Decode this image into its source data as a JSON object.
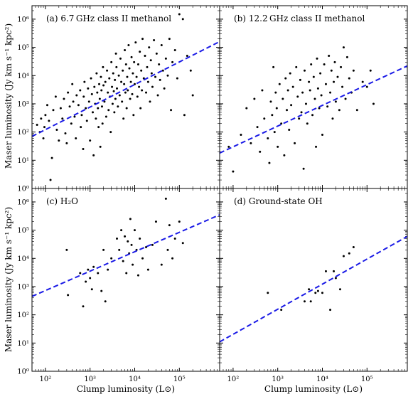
{
  "figure": {
    "ylabel": "Maser luminosity (Jy km s⁻¹ kpc²)",
    "xlabel": "Clump luminosity (L⊙)",
    "xtick_labels": [
      "10²",
      "10³",
      "10⁴",
      "10⁵"
    ],
    "ytick_labels": [
      "10⁰",
      "10¹",
      "10²",
      "10³",
      "10⁴",
      "10⁵",
      "10⁶"
    ],
    "marker_color": "#000000",
    "fit_color": "#1a1ae6"
  },
  "chart_data": [
    {
      "type": "scatter",
      "panel_label": "(a) 6.7 GHz class II methanol",
      "xscale": "log",
      "yscale": "log",
      "xlim": [
        50,
        800000
      ],
      "ylim": [
        1,
        3000000
      ],
      "fit_line": {
        "x": [
          50,
          800000
        ],
        "y": [
          70,
          160000
        ]
      },
      "points": [
        [
          65,
          180
        ],
        [
          75,
          100
        ],
        [
          80,
          300
        ],
        [
          90,
          60
        ],
        [
          95,
          150
        ],
        [
          100,
          400
        ],
        [
          110,
          900
        ],
        [
          120,
          250
        ],
        [
          130,
          2
        ],
        [
          140,
          12
        ],
        [
          150,
          600
        ],
        [
          170,
          1800
        ],
        [
          180,
          120
        ],
        [
          200,
          50
        ],
        [
          220,
          700
        ],
        [
          240,
          300
        ],
        [
          260,
          1500
        ],
        [
          280,
          90
        ],
        [
          300,
          40
        ],
        [
          320,
          2500
        ],
        [
          350,
          800
        ],
        [
          380,
          200
        ],
        [
          400,
          5000
        ],
        [
          420,
          1200
        ],
        [
          450,
          350
        ],
        [
          480,
          60
        ],
        [
          500,
          2000
        ],
        [
          550,
          900
        ],
        [
          600,
          3000
        ],
        [
          620,
          150
        ],
        [
          650,
          400
        ],
        [
          700,
          25
        ],
        [
          720,
          1800
        ],
        [
          750,
          6000
        ],
        [
          800,
          700
        ],
        [
          850,
          250
        ],
        [
          900,
          3500
        ],
        [
          950,
          1200
        ],
        [
          1000,
          50
        ],
        [
          1050,
          8000
        ],
        [
          1100,
          2200
        ],
        [
          1150,
          500
        ],
        [
          1200,
          15
        ],
        [
          1250,
          4000
        ],
        [
          1300,
          1000
        ],
        [
          1350,
          300
        ],
        [
          1400,
          12000
        ],
        [
          1450,
          2500
        ],
        [
          1500,
          700
        ],
        [
          1550,
          150
        ],
        [
          1600,
          5000
        ],
        [
          1650,
          1500
        ],
        [
          1700,
          30
        ],
        [
          1750,
          9000
        ],
        [
          1800,
          3000
        ],
        [
          1850,
          800
        ],
        [
          1900,
          200
        ],
        [
          1950,
          20000
        ],
        [
          2000,
          4500
        ],
        [
          2100,
          1200
        ],
        [
          2200,
          6000
        ],
        [
          2300,
          350
        ],
        [
          2400,
          15000
        ],
        [
          2500,
          2500
        ],
        [
          2600,
          600
        ],
        [
          2700,
          8000
        ],
        [
          2800,
          1800
        ],
        [
          2900,
          100
        ],
        [
          3000,
          30000
        ],
        [
          3100,
          4000
        ],
        [
          3200,
          1000
        ],
        [
          3300,
          12000
        ],
        [
          3400,
          2800
        ],
        [
          3500,
          500
        ],
        [
          3600,
          7000
        ],
        [
          3700,
          1500
        ],
        [
          3800,
          60000
        ],
        [
          3900,
          20000
        ],
        [
          4000,
          3500
        ],
        [
          4200,
          800
        ],
        [
          4400,
          10000
        ],
        [
          4600,
          2000
        ],
        [
          4800,
          40000
        ],
        [
          5000,
          6000
        ],
        [
          5200,
          1200
        ],
        [
          5400,
          15000
        ],
        [
          5600,
          300
        ],
        [
          5800,
          5000
        ],
        [
          6000,
          80000
        ],
        [
          6200,
          2500
        ],
        [
          6400,
          25000
        ],
        [
          6600,
          700
        ],
        [
          6800,
          9000
        ],
        [
          7000,
          3000
        ],
        [
          7300,
          120000
        ],
        [
          7600,
          18000
        ],
        [
          7900,
          1500
        ],
        [
          8200,
          6000
        ],
        [
          8500,
          45000
        ],
        [
          8800,
          2200
        ],
        [
          9100,
          12000
        ],
        [
          9400,
          400
        ],
        [
          9700,
          30000
        ],
        [
          10000,
          5000
        ],
        [
          10500,
          150000
        ],
        [
          11000,
          9000
        ],
        [
          11500,
          1800
        ],
        [
          12000,
          25000
        ],
        [
          12500,
          4000
        ],
        [
          13000,
          70000
        ],
        [
          13500,
          700
        ],
        [
          14000,
          15000
        ],
        [
          14500,
          3000
        ],
        [
          15000,
          200000
        ],
        [
          16000,
          8000
        ],
        [
          17000,
          50000
        ],
        [
          18000,
          2500
        ],
        [
          19000,
          20000
        ],
        [
          20000,
          6000
        ],
        [
          21000,
          100000
        ],
        [
          22000,
          1200
        ],
        [
          23000,
          35000
        ],
        [
          24000,
          12000
        ],
        [
          25000,
          4000
        ],
        [
          27000,
          180000
        ],
        [
          29000,
          9000
        ],
        [
          31000,
          60000
        ],
        [
          33000,
          2000
        ],
        [
          35000,
          25000
        ],
        [
          37000,
          7000
        ],
        [
          40000,
          120000
        ],
        [
          43000,
          15000
        ],
        [
          46000,
          3500
        ],
        [
          50000,
          40000
        ],
        [
          55000,
          10000
        ],
        [
          60000,
          200000
        ],
        [
          65000,
          600
        ],
        [
          70000,
          30000
        ],
        [
          80000,
          80000
        ],
        [
          90000,
          8000
        ],
        [
          100000,
          1500000
        ],
        [
          120000,
          1000000
        ],
        [
          130000,
          400
        ],
        [
          150000,
          50000
        ],
        [
          180000,
          15000
        ],
        [
          200000,
          2000
        ]
      ]
    },
    {
      "type": "scatter",
      "panel_label": "(b) 12.2 GHz class II methanol",
      "xscale": "log",
      "yscale": "log",
      "xlim": [
        50,
        800000
      ],
      "ylim": [
        1,
        3000000
      ],
      "fit_line": {
        "x": [
          50,
          800000
        ],
        "y": [
          18,
          22000
        ]
      },
      "points": [
        [
          80,
          30
        ],
        [
          100,
          4
        ],
        [
          150,
          80
        ],
        [
          200,
          700
        ],
        [
          250,
          40
        ],
        [
          300,
          1500
        ],
        [
          350,
          150
        ],
        [
          400,
          20
        ],
        [
          450,
          3000
        ],
        [
          500,
          300
        ],
        [
          600,
          60
        ],
        [
          650,
          8
        ],
        [
          700,
          1200
        ],
        [
          750,
          400
        ],
        [
          800,
          20000
        ],
        [
          850,
          100
        ],
        [
          900,
          2500
        ],
        [
          950,
          700
        ],
        [
          1000,
          30
        ],
        [
          1100,
          5000
        ],
        [
          1200,
          200
        ],
        [
          1300,
          1500
        ],
        [
          1400,
          15
        ],
        [
          1500,
          8000
        ],
        [
          1600,
          600
        ],
        [
          1700,
          3000
        ],
        [
          1800,
          120
        ],
        [
          1900,
          12000
        ],
        [
          2000,
          900
        ],
        [
          2200,
          4000
        ],
        [
          2400,
          40
        ],
        [
          2600,
          20000
        ],
        [
          2800,
          1800
        ],
        [
          3000,
          300
        ],
        [
          3200,
          7000
        ],
        [
          3400,
          500
        ],
        [
          3600,
          2500
        ],
        [
          3800,
          5
        ],
        [
          4000,
          15000
        ],
        [
          4300,
          1000
        ],
        [
          4600,
          200
        ],
        [
          5000,
          6000
        ],
        [
          5300,
          3000
        ],
        [
          5600,
          25000
        ],
        [
          6000,
          400
        ],
        [
          6400,
          9000
        ],
        [
          6800,
          1500
        ],
        [
          7200,
          30
        ],
        [
          7600,
          40000
        ],
        [
          8000,
          3500
        ],
        [
          8500,
          700
        ],
        [
          9000,
          12000
        ],
        [
          9500,
          2000
        ],
        [
          10000,
          80
        ],
        [
          11000,
          25000
        ],
        [
          12000,
          5000
        ],
        [
          13000,
          800
        ],
        [
          14000,
          50000
        ],
        [
          15000,
          2500
        ],
        [
          16000,
          15000
        ],
        [
          17000,
          300
        ],
        [
          18000,
          6000
        ],
        [
          19000,
          30000
        ],
        [
          20000,
          1200
        ],
        [
          22000,
          9000
        ],
        [
          24000,
          600
        ],
        [
          26000,
          20000
        ],
        [
          28000,
          4000
        ],
        [
          30000,
          100000
        ],
        [
          33000,
          1500
        ],
        [
          36000,
          45000
        ],
        [
          40000,
          8000
        ],
        [
          45000,
          2500
        ],
        [
          50000,
          15000
        ],
        [
          60000,
          600
        ],
        [
          80000,
          6000
        ],
        [
          100000,
          4000
        ],
        [
          120000,
          15000
        ],
        [
          140000,
          1000
        ]
      ]
    },
    {
      "type": "scatter",
      "panel_label": "(c) H₂O",
      "xscale": "log",
      "yscale": "log",
      "xlim": [
        50,
        800000
      ],
      "ylim": [
        1,
        3000000
      ],
      "fit_line": {
        "x": [
          50,
          800000
        ],
        "y": [
          450,
          350000
        ]
      },
      "points": [
        [
          300,
          20000
        ],
        [
          320,
          500
        ],
        [
          600,
          3000
        ],
        [
          700,
          200
        ],
        [
          800,
          1500
        ],
        [
          900,
          4000
        ],
        [
          1000,
          2000
        ],
        [
          1100,
          800
        ],
        [
          1200,
          5000
        ],
        [
          1500,
          3000
        ],
        [
          1800,
          700
        ],
        [
          2000,
          20000
        ],
        [
          2200,
          300
        ],
        [
          2500,
          4000
        ],
        [
          3000,
          10000
        ],
        [
          4000,
          50000
        ],
        [
          4500,
          20000
        ],
        [
          5000,
          100000
        ],
        [
          5500,
          8000
        ],
        [
          6000,
          60000
        ],
        [
          6500,
          3000
        ],
        [
          7000,
          40000
        ],
        [
          7500,
          15000
        ],
        [
          8000,
          250000
        ],
        [
          8500,
          30000
        ],
        [
          9000,
          6000
        ],
        [
          10000,
          100000
        ],
        [
          11000,
          20000
        ],
        [
          12000,
          2500
        ],
        [
          13000,
          50000
        ],
        [
          15000,
          10000
        ],
        [
          18000,
          25000
        ],
        [
          20000,
          4000
        ],
        [
          25000,
          30000
        ],
        [
          30000,
          200000
        ],
        [
          40000,
          6000
        ],
        [
          50000,
          1300000
        ],
        [
          55000,
          20000
        ],
        [
          60000,
          150000
        ],
        [
          70000,
          10000
        ],
        [
          80000,
          50000
        ],
        [
          100000,
          200000
        ],
        [
          120000,
          35000
        ]
      ]
    },
    {
      "type": "scatter",
      "panel_label": "(d) Ground-state OH",
      "xscale": "log",
      "yscale": "log",
      "xlim": [
        50,
        800000
      ],
      "ylim": [
        1,
        3000000
      ],
      "fit_line": {
        "x": [
          50,
          800000
        ],
        "y": [
          11,
          60000
        ]
      },
      "points": [
        [
          600,
          600
        ],
        [
          1200,
          150
        ],
        [
          4000,
          300
        ],
        [
          5000,
          800
        ],
        [
          5500,
          300
        ],
        [
          7000,
          600
        ],
        [
          8000,
          700
        ],
        [
          10000,
          600
        ],
        [
          12000,
          3500
        ],
        [
          15000,
          150
        ],
        [
          18000,
          3500
        ],
        [
          20000,
          2000
        ],
        [
          25000,
          800
        ],
        [
          30000,
          12000
        ],
        [
          40000,
          15000
        ],
        [
          50000,
          25000
        ]
      ]
    }
  ]
}
